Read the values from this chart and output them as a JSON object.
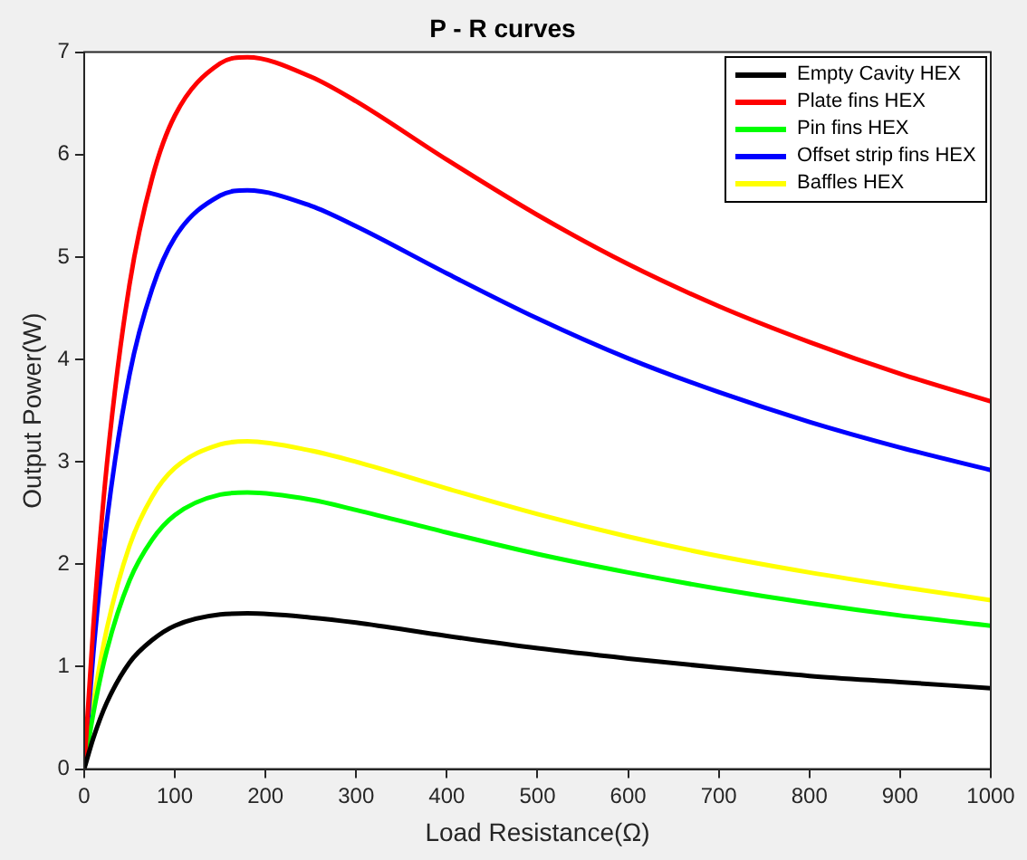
{
  "chart_data": {
    "type": "line",
    "title": "P - R curves",
    "xlabel": "Load Resistance(Ω)",
    "ylabel": "Output Power(W)",
    "x": [
      0,
      10,
      25,
      50,
      75,
      100,
      150,
      180,
      250,
      300,
      400,
      500,
      600,
      700,
      800,
      900,
      1000
    ],
    "xlim": [
      0,
      1000
    ],
    "xticks": [
      0,
      100,
      200,
      300,
      400,
      500,
      600,
      700,
      800,
      900,
      1000
    ],
    "ylim": [
      0,
      7
    ],
    "yticks": [
      0,
      1,
      2,
      3,
      4,
      5,
      6,
      7
    ],
    "grid": false,
    "legend": "top right",
    "marker": "none",
    "line_style": "solid",
    "series": [
      {
        "name": "Empty Cavity HEX",
        "color": "#000000",
        "values": [
          0,
          0.3,
          0.65,
          1.04,
          1.26,
          1.4,
          1.51,
          1.52,
          1.48,
          1.43,
          1.3,
          1.18,
          1.08,
          0.99,
          0.91,
          0.85,
          0.79
        ]
      },
      {
        "name": "Plate fins HEX",
        "color": "#ff0000",
        "values": [
          0,
          1.38,
          2.97,
          4.73,
          5.77,
          6.38,
          6.89,
          6.95,
          6.76,
          6.52,
          5.95,
          5.41,
          4.93,
          4.52,
          4.17,
          3.86,
          3.59
        ]
      },
      {
        "name": "Pin fins HEX",
        "color": "#00ff00",
        "values": [
          0,
          0.54,
          1.16,
          1.84,
          2.24,
          2.48,
          2.68,
          2.7,
          2.63,
          2.53,
          2.31,
          2.1,
          1.92,
          1.76,
          1.62,
          1.5,
          1.4
        ]
      },
      {
        "name": "Offset strip fins HEX",
        "color": "#0000ff",
        "values": [
          0,
          1.12,
          2.42,
          3.85,
          4.69,
          5.19,
          5.6,
          5.65,
          5.5,
          5.3,
          4.84,
          4.4,
          4.01,
          3.68,
          3.39,
          3.14,
          2.92
        ]
      },
      {
        "name": "Baffles HEX",
        "color": "#ffff00",
        "values": [
          0,
          0.64,
          1.37,
          2.18,
          2.66,
          2.94,
          3.17,
          3.2,
          3.11,
          3.0,
          2.74,
          2.49,
          2.27,
          2.08,
          1.92,
          1.78,
          1.65
        ]
      }
    ]
  }
}
